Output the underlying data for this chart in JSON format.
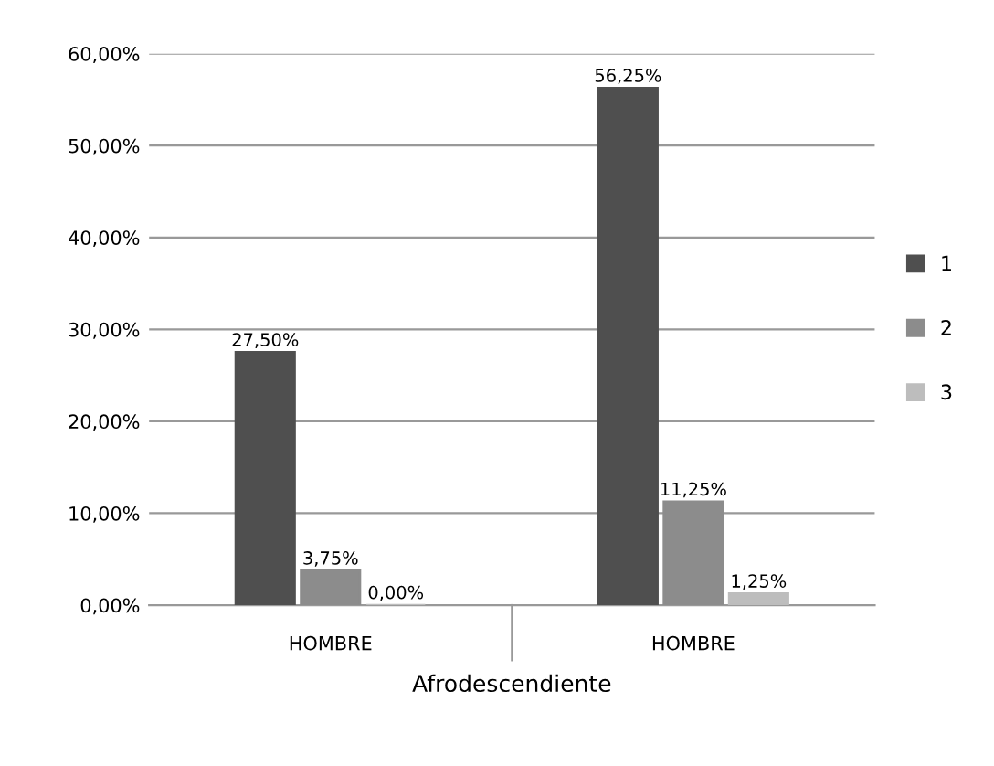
{
  "chart_data": {
    "type": "bar",
    "categories": [
      "HOMBRE",
      "HOMBRE"
    ],
    "xlabel": "Afrodescendiente",
    "series": [
      {
        "name": "1",
        "color": "#4f4f4f",
        "values": [
          27.5,
          56.25
        ],
        "value_labels": [
          "27,50%",
          "56,25%"
        ]
      },
      {
        "name": "2",
        "color": "#8c8c8c",
        "values": [
          3.75,
          11.25
        ],
        "value_labels": [
          "3,75%",
          "11,25%"
        ]
      },
      {
        "name": "3",
        "color": "#bdbdbd",
        "values": [
          0,
          1.25
        ],
        "value_labels": [
          "0,00%",
          "1,25%"
        ]
      }
    ],
    "ylim": [
      0,
      60
    ],
    "yticks": [
      {
        "value": 0,
        "label": "0,00%"
      },
      {
        "value": 10,
        "label": "10,00%"
      },
      {
        "value": 20,
        "label": "20,00%"
      },
      {
        "value": 30,
        "label": "30,00%"
      },
      {
        "value": 40,
        "label": "40,00%"
      },
      {
        "value": 50,
        "label": "50,00%"
      },
      {
        "value": 60,
        "label": "60,00%"
      }
    ],
    "grid": "y",
    "legend": "right"
  }
}
